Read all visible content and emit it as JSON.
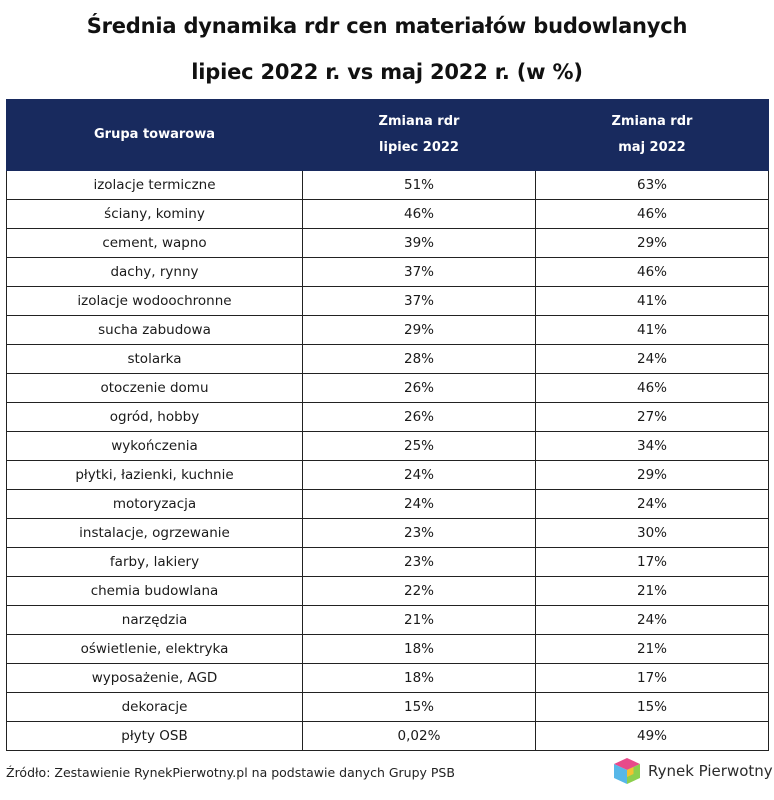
{
  "title_line1": "Średnia dynamika rdr cen materiałów budowlanych",
  "title_line2": "lipiec 2022 r. vs maj 2022 r. (w %)",
  "chart_data": {
    "type": "table",
    "columns": [
      {
        "lines": [
          "Grupa towarowa"
        ]
      },
      {
        "lines": [
          "Zmiana rdr",
          "lipiec 2022"
        ]
      },
      {
        "lines": [
          "Zmiana rdr",
          "maj 2022"
        ]
      }
    ],
    "rows": [
      [
        "izolacje termiczne",
        "51%",
        "63%"
      ],
      [
        "ściany, kominy",
        "46%",
        "46%"
      ],
      [
        "cement, wapno",
        "39%",
        "29%"
      ],
      [
        "dachy, rynny",
        "37%",
        "46%"
      ],
      [
        "izolacje wodoochronne",
        "37%",
        "41%"
      ],
      [
        "sucha zabudowa",
        "29%",
        "41%"
      ],
      [
        "stolarka",
        "28%",
        "24%"
      ],
      [
        "otoczenie domu",
        "26%",
        "46%"
      ],
      [
        "ogród, hobby",
        "26%",
        "27%"
      ],
      [
        "wykończenia",
        "25%",
        "34%"
      ],
      [
        "płytki, łazienki, kuchnie",
        "24%",
        "29%"
      ],
      [
        "motoryzacja",
        "24%",
        "24%"
      ],
      [
        "instalacje, ogrzewanie",
        "23%",
        "30%"
      ],
      [
        "farby, lakiery",
        "23%",
        "17%"
      ],
      [
        "chemia budowlana",
        "22%",
        "21%"
      ],
      [
        "narzędzia",
        "21%",
        "24%"
      ],
      [
        "oświetlenie, elektryka",
        "18%",
        "21%"
      ],
      [
        "wyposażenie, AGD",
        "18%",
        "17%"
      ],
      [
        "dekoracje",
        "15%",
        "15%"
      ],
      [
        "płyty OSB",
        "0,02%",
        "49%"
      ]
    ]
  },
  "source": "Źródło: Zestawienie RynekPierwotny.pl na podstawie danych Grupy PSB",
  "brand": "Rynek Pierwotny",
  "colors": {
    "header_bg": "#182a5e",
    "header_text": "#ffffff"
  }
}
